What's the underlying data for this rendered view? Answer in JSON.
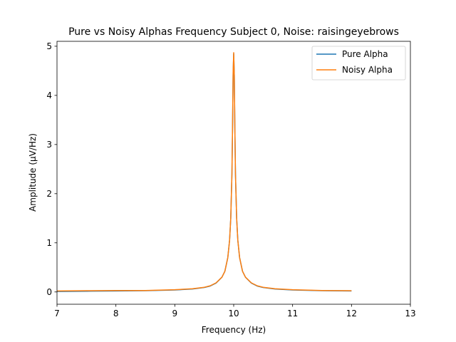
{
  "chart_data": {
    "type": "line",
    "title": "Pure vs Noisy Alphas Frequency Subject 0, Noise: raisingeyebrows",
    "xlabel": "Frequency (Hz)",
    "ylabel": "Amplitude (μV/Hz)",
    "xlim": [
      7,
      13
    ],
    "ylim": [
      -0.25,
      5.1
    ],
    "xticks": [
      7,
      8,
      9,
      10,
      11,
      12,
      13
    ],
    "yticks": [
      0,
      1,
      2,
      3,
      4,
      5
    ],
    "grid": false,
    "legend_position": "top-right",
    "series": [
      {
        "name": "Pure Alpha",
        "color": "#1f77b4",
        "x": [
          7.0,
          7.5,
          8.0,
          8.5,
          9.0,
          9.3,
          9.5,
          9.6,
          9.7,
          9.8,
          9.85,
          9.9,
          9.93,
          9.95,
          9.97,
          9.98,
          9.99,
          10.0,
          10.01,
          10.02,
          10.03,
          10.05,
          10.07,
          10.1,
          10.15,
          10.2,
          10.3,
          10.4,
          10.5,
          10.7,
          11.0,
          11.5,
          12.0
        ],
        "y": [
          0.01,
          0.015,
          0.02,
          0.025,
          0.04,
          0.06,
          0.09,
          0.12,
          0.18,
          0.3,
          0.42,
          0.7,
          1.05,
          1.5,
          2.4,
          3.3,
          4.4,
          4.85,
          4.4,
          3.3,
          2.4,
          1.5,
          1.05,
          0.7,
          0.42,
          0.3,
          0.18,
          0.12,
          0.09,
          0.06,
          0.04,
          0.025,
          0.02
        ]
      },
      {
        "name": "Noisy Alpha",
        "color": "#ff7f0e",
        "x": [
          7.0,
          7.5,
          8.0,
          8.5,
          9.0,
          9.3,
          9.5,
          9.6,
          9.7,
          9.8,
          9.85,
          9.9,
          9.93,
          9.95,
          9.97,
          9.98,
          9.99,
          10.0,
          10.01,
          10.02,
          10.03,
          10.05,
          10.07,
          10.1,
          10.15,
          10.2,
          10.3,
          10.4,
          10.5,
          10.7,
          11.0,
          11.5,
          12.0
        ],
        "y": [
          0.02,
          0.025,
          0.03,
          0.03,
          0.045,
          0.065,
          0.095,
          0.125,
          0.185,
          0.3,
          0.42,
          0.7,
          1.05,
          1.5,
          2.4,
          3.3,
          4.45,
          4.87,
          4.4,
          3.3,
          2.4,
          1.5,
          1.05,
          0.7,
          0.42,
          0.3,
          0.185,
          0.125,
          0.095,
          0.065,
          0.045,
          0.03,
          0.025
        ]
      }
    ]
  }
}
